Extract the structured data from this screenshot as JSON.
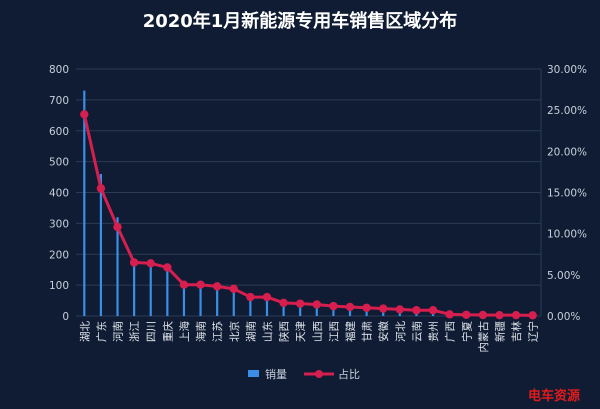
{
  "chart_data": {
    "type": "bar+line",
    "title": "2020年1月新能源专用车销售区域分布",
    "categories": [
      "湖北",
      "广东",
      "河南",
      "浙江",
      "四川",
      "重庆",
      "上海",
      "海南",
      "江苏",
      "北京",
      "湖南",
      "山东",
      "陕西",
      "天津",
      "山西",
      "江西",
      "福建",
      "甘肃",
      "安徽",
      "河北",
      "云南",
      "贵州",
      "广西",
      "宁夏",
      "内蒙古",
      "新疆",
      "吉林",
      "辽宁"
    ],
    "series": [
      {
        "name": "销量",
        "kind": "bar",
        "axis": "left",
        "values": [
          730,
          460,
          320,
          180,
          175,
          160,
          105,
          100,
          95,
          90,
          65,
          60,
          45,
          42,
          40,
          35,
          30,
          28,
          25,
          22,
          20,
          18,
          8,
          5,
          4,
          3,
          3,
          2
        ]
      },
      {
        "name": "占比",
        "kind": "line",
        "axis": "right",
        "values": [
          24.5,
          15.5,
          10.8,
          6.5,
          6.4,
          5.9,
          3.8,
          3.8,
          3.6,
          3.3,
          2.3,
          2.3,
          1.6,
          1.5,
          1.4,
          1.2,
          1.1,
          1.0,
          0.9,
          0.8,
          0.7,
          0.7,
          0.2,
          0.15,
          0.12,
          0.1,
          0.1,
          0.08
        ]
      }
    ],
    "y_left": {
      "ylim": [
        0,
        800
      ],
      "ticks": [
        "0",
        "100",
        "200",
        "300",
        "400",
        "500",
        "600",
        "700",
        "800"
      ]
    },
    "y_right": {
      "ylim": [
        0,
        30
      ],
      "ticks": [
        "0.00%",
        "5.00%",
        "10.00%",
        "15.00%",
        "20.00%",
        "25.00%",
        "30.00%"
      ]
    },
    "grid": true,
    "legend": "bottom-center",
    "colors": {
      "background": "#0f1c33",
      "bar": "#3a8ee6",
      "line": "#d61f4f",
      "grid": "#2c3a55"
    }
  },
  "watermark": "电车资源"
}
